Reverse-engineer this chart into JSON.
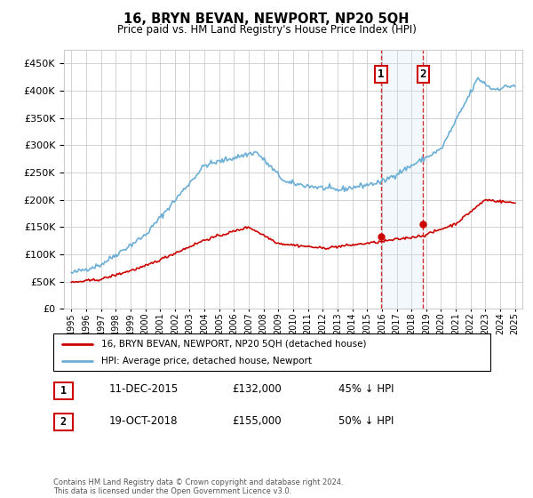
{
  "title": "16, BRYN BEVAN, NEWPORT, NP20 5QH",
  "subtitle": "Price paid vs. HM Land Registry's House Price Index (HPI)",
  "legend_line1": "16, BRYN BEVAN, NEWPORT, NP20 5QH (detached house)",
  "legend_line2": "HPI: Average price, detached house, Newport",
  "annotation1_date": "11-DEC-2015",
  "annotation1_price": "£132,000",
  "annotation1_hpi": "45% ↓ HPI",
  "annotation2_date": "19-OCT-2018",
  "annotation2_price": "£155,000",
  "annotation2_hpi": "50% ↓ HPI",
  "footnote": "Contains HM Land Registry data © Crown copyright and database right 2024.\nThis data is licensed under the Open Government Licence v3.0.",
  "sale1_year": 2015.95,
  "sale1_value": 132000,
  "sale2_year": 2018.8,
  "sale2_value": 155000,
  "hpi_color": "#6baed6",
  "price_color": "#cc0000",
  "background_color": "#ffffff",
  "grid_color": "#cccccc",
  "shade_color": "#d0e4f7",
  "ylim": [
    0,
    475000
  ],
  "yticks": [
    0,
    50000,
    100000,
    150000,
    200000,
    250000,
    300000,
    350000,
    400000,
    450000
  ]
}
